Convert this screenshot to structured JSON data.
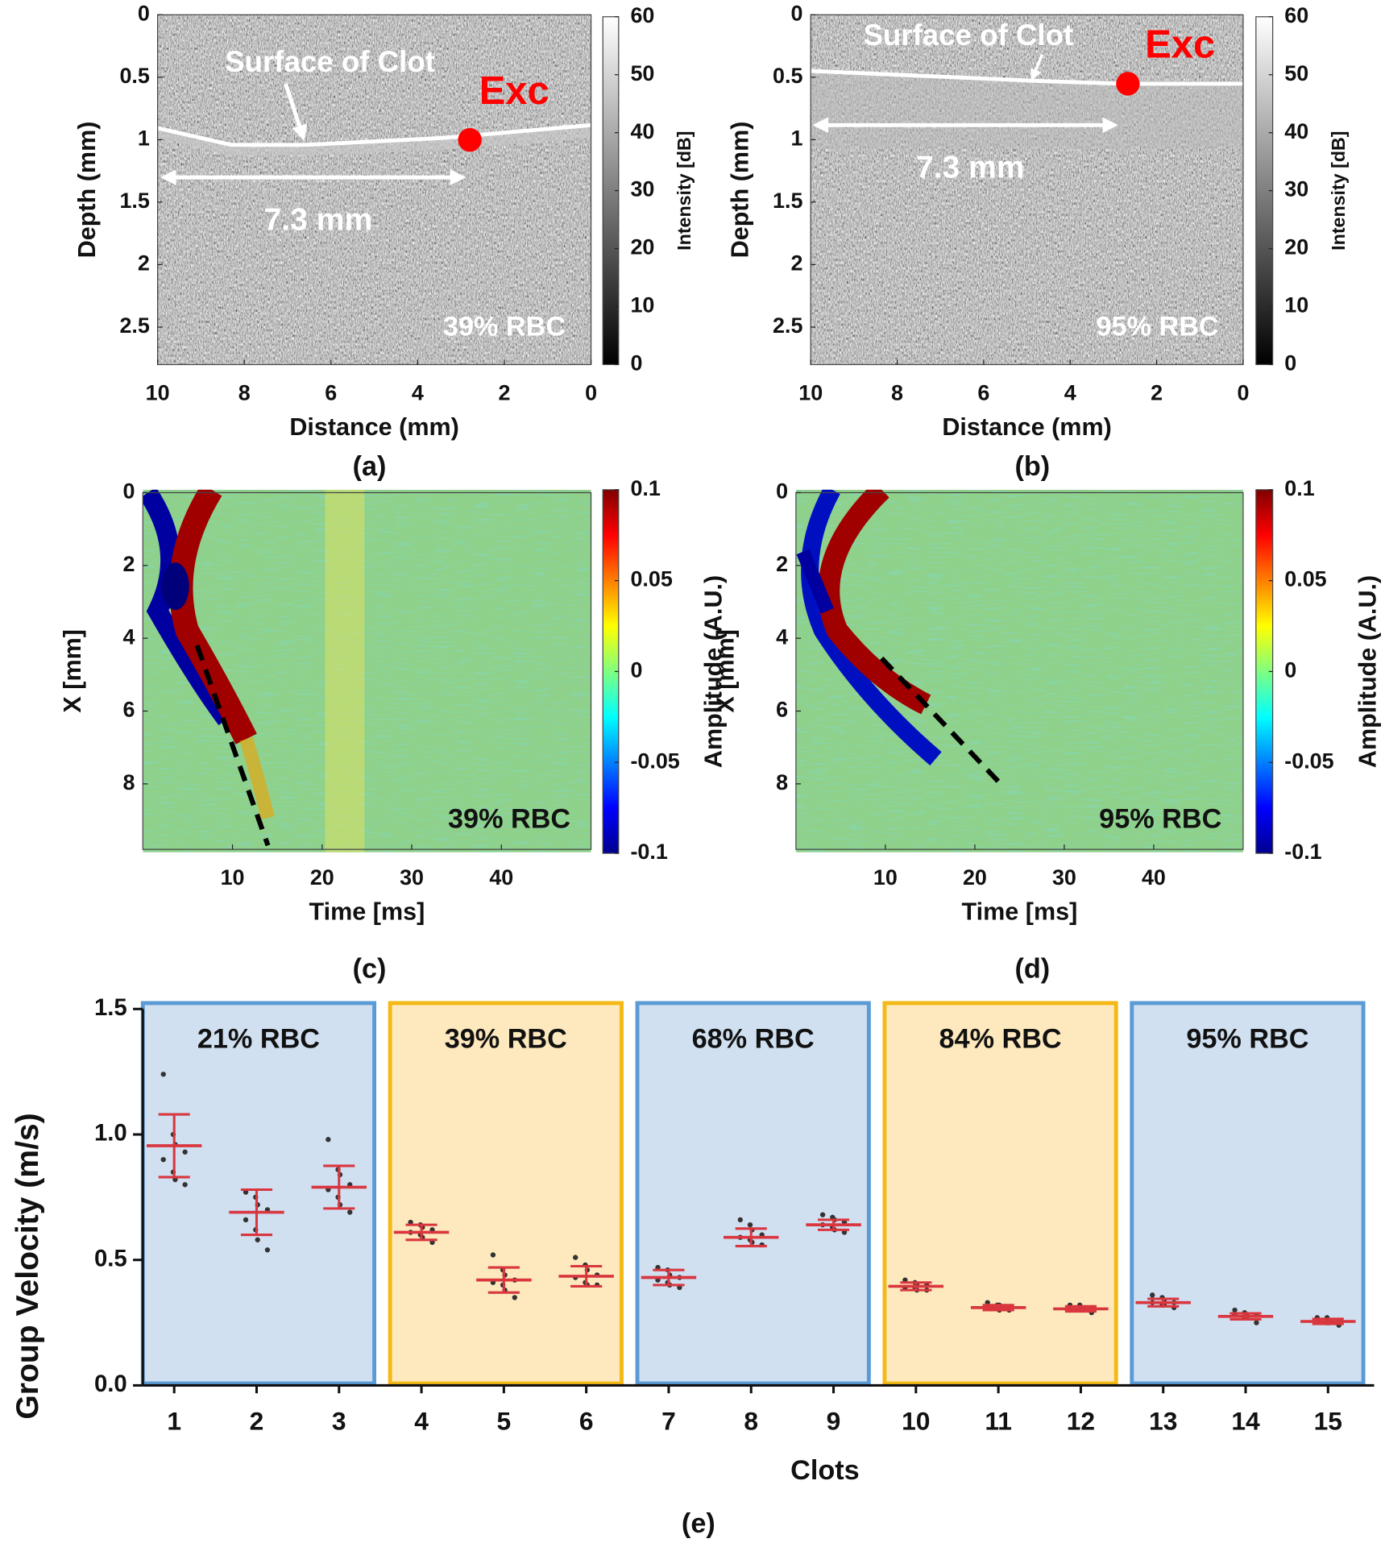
{
  "chart_data": [
    {
      "type": "heatmap",
      "panel_label": "(a)",
      "xlabel": "Distance (mm)",
      "ylabel": "Depth (mm)",
      "xlim": [
        10,
        0
      ],
      "xticks": [
        10,
        8,
        6,
        4,
        2,
        0
      ],
      "ylim": [
        2.8,
        0
      ],
      "yticks": [
        0,
        0.5,
        1,
        1.5,
        2,
        2.5
      ],
      "colormap": "gray",
      "colorbar_label": "Intensity [dB]",
      "clim": [
        0,
        60
      ],
      "cticks": [
        0,
        10,
        20,
        30,
        40,
        50,
        60
      ],
      "annotations": [
        "Surface of Clot",
        "Exc",
        "7.3 mm",
        "39% RBC"
      ]
    },
    {
      "type": "heatmap",
      "panel_label": "(b)",
      "xlabel": "Distance (mm)",
      "ylabel": "Depth (mm)",
      "xlim": [
        10,
        0
      ],
      "xticks": [
        10,
        8,
        6,
        4,
        2,
        0
      ],
      "ylim": [
        2.8,
        0
      ],
      "yticks": [
        0,
        0.5,
        1,
        1.5,
        2,
        2.5
      ],
      "colormap": "gray",
      "colorbar_label": "Intensity [dB]",
      "clim": [
        0,
        60
      ],
      "cticks": [
        0,
        10,
        20,
        30,
        40,
        50,
        60
      ],
      "annotations": [
        "Surface of Clot",
        "Exc",
        "7.3 mm",
        "95% RBC"
      ]
    },
    {
      "type": "heatmap",
      "panel_label": "(c)",
      "xlabel": "Time [ms]",
      "ylabel": "X [mm]",
      "xlim": [
        0,
        50
      ],
      "xticks": [
        10,
        20,
        30,
        40
      ],
      "ylim": [
        9.8,
        0
      ],
      "yticks": [
        0,
        2,
        4,
        6,
        8
      ],
      "colormap": "jet",
      "colorbar_label": "Amplitude (A.U.)",
      "clim": [
        -0.1,
        0.1
      ],
      "cticks": [
        -0.1,
        -0.05,
        0,
        0.05,
        0.1
      ],
      "annotations": [
        "39% RBC"
      ]
    },
    {
      "type": "heatmap",
      "panel_label": "(d)",
      "xlabel": "Time [ms]",
      "ylabel": "X [mm]",
      "xlim": [
        0,
        50
      ],
      "xticks": [
        10,
        20,
        30,
        40
      ],
      "ylim": [
        9.8,
        0
      ],
      "yticks": [
        0,
        2,
        4,
        6,
        8
      ],
      "colormap": "jet",
      "colorbar_label": "Amplitude (A.U.)",
      "clim": [
        -0.1,
        0.1
      ],
      "cticks": [
        -0.1,
        -0.05,
        0,
        0.05,
        0.1
      ],
      "annotations": [
        "95% RBC"
      ]
    },
    {
      "type": "dotplot",
      "panel_label": "(e)",
      "xlabel": "Clots",
      "ylabel": "Group Velocity (m/s)",
      "categories": [
        "1",
        "2",
        "3",
        "4",
        "5",
        "6",
        "7",
        "8",
        "9",
        "10",
        "11",
        "12",
        "13",
        "14",
        "15"
      ],
      "ylim": [
        0,
        1.5
      ],
      "yticks": [
        {
          "value": 0,
          "label": "0.0"
        },
        0.5,
        {
          "value": 1,
          "label": "1.0"
        },
        1.5
      ],
      "mean_color": "#d9363e",
      "point_color": "#333333",
      "values": [
        0.955,
        0.69,
        0.79,
        0.61,
        0.42,
        0.435,
        0.43,
        0.59,
        0.64,
        0.395,
        0.31,
        0.305,
        0.33,
        0.275,
        0.255
      ],
      "errors": [
        0.125,
        0.09,
        0.085,
        0.03,
        0.05,
        0.04,
        0.03,
        0.035,
        0.02,
        0.015,
        0.01,
        0.01,
        0.015,
        0.012,
        0.01
      ],
      "points": [
        [
          1.24,
          1.0,
          0.96,
          0.93,
          0.9,
          0.85,
          0.82,
          0.8
        ],
        [
          0.77,
          0.75,
          0.72,
          0.7,
          0.66,
          0.62,
          0.58,
          0.54
        ],
        [
          0.98,
          0.86,
          0.84,
          0.8,
          0.78,
          0.75,
          0.72,
          0.69
        ],
        [
          0.65,
          0.64,
          0.63,
          0.62,
          0.61,
          0.6,
          0.59,
          0.57
        ],
        [
          0.52,
          0.46,
          0.44,
          0.42,
          0.41,
          0.4,
          0.38,
          0.35
        ],
        [
          0.51,
          0.48,
          0.46,
          0.44,
          0.43,
          0.41,
          0.4,
          0.4
        ],
        [
          0.47,
          0.46,
          0.44,
          0.43,
          0.42,
          0.41,
          0.4,
          0.39
        ],
        [
          0.66,
          0.64,
          0.62,
          0.6,
          0.59,
          0.58,
          0.57,
          0.56
        ],
        [
          0.68,
          0.67,
          0.66,
          0.65,
          0.64,
          0.63,
          0.62,
          0.61
        ],
        [
          0.42,
          0.41,
          0.4,
          0.4,
          0.39,
          0.39,
          0.38,
          0.38
        ],
        [
          0.33,
          0.32,
          0.32,
          0.31,
          0.31,
          0.31,
          0.3,
          0.3
        ],
        [
          0.32,
          0.32,
          0.31,
          0.31,
          0.3,
          0.3,
          0.3,
          0.29
        ],
        [
          0.36,
          0.35,
          0.34,
          0.33,
          0.33,
          0.32,
          0.32,
          0.31
        ],
        [
          0.3,
          0.29,
          0.28,
          0.28,
          0.28,
          0.27,
          0.27,
          0.25
        ],
        [
          0.27,
          0.27,
          0.26,
          0.26,
          0.26,
          0.25,
          0.25,
          0.24
        ]
      ],
      "groups": [
        {
          "label": "21% RBC",
          "first": "1",
          "last": "3",
          "fill": "#d0e0f1",
          "edge": "#5b9bd5"
        },
        {
          "label": "39% RBC",
          "first": "4",
          "last": "6",
          "fill": "#fde9bd",
          "edge": "#f4b915"
        },
        {
          "label": "68% RBC",
          "first": "7",
          "last": "9",
          "fill": "#d0e0f1",
          "edge": "#5b9bd5"
        },
        {
          "label": "84% RBC",
          "first": "10",
          "last": "12",
          "fill": "#fde9bd",
          "edge": "#f4b915"
        },
        {
          "label": "95% RBC",
          "first": "13",
          "last": "15",
          "fill": "#d0e0f1",
          "edge": "#5b9bd5"
        }
      ]
    }
  ]
}
